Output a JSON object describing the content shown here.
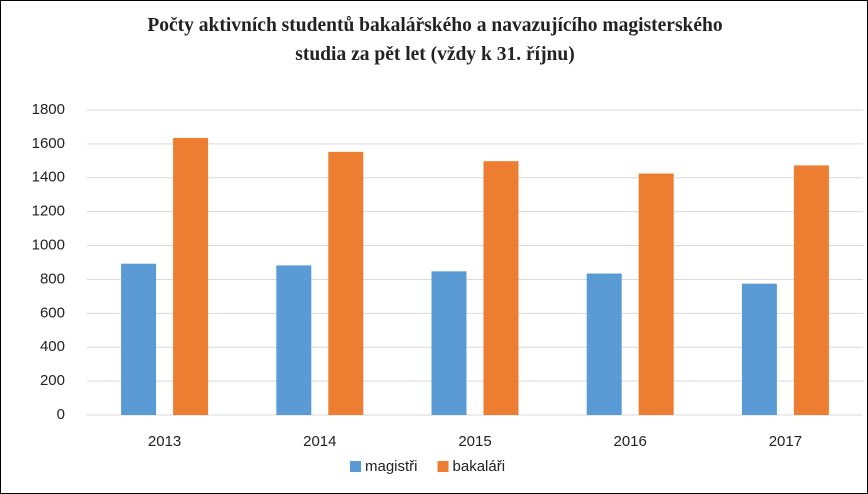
{
  "chart_data": {
    "type": "bar",
    "title": "Počty aktivních studentů bakalářského a navazujícího magisterského studia za pět let (vždy k 31. říjnu)",
    "categories": [
      "2013",
      "2014",
      "2015",
      "2016",
      "2017"
    ],
    "series": [
      {
        "name": "magistři",
        "color": "#5b9bd5",
        "values": [
          893,
          883,
          848,
          835,
          775
        ]
      },
      {
        "name": "bakaláři",
        "color": "#ed7d31",
        "values": [
          1635,
          1553,
          1498,
          1425,
          1473
        ]
      }
    ],
    "ylim": [
      0,
      1800
    ],
    "yticks": [
      0,
      200,
      400,
      600,
      800,
      1000,
      1200,
      1400,
      1600,
      1800
    ],
    "grid": true,
    "legend": "bottom"
  }
}
